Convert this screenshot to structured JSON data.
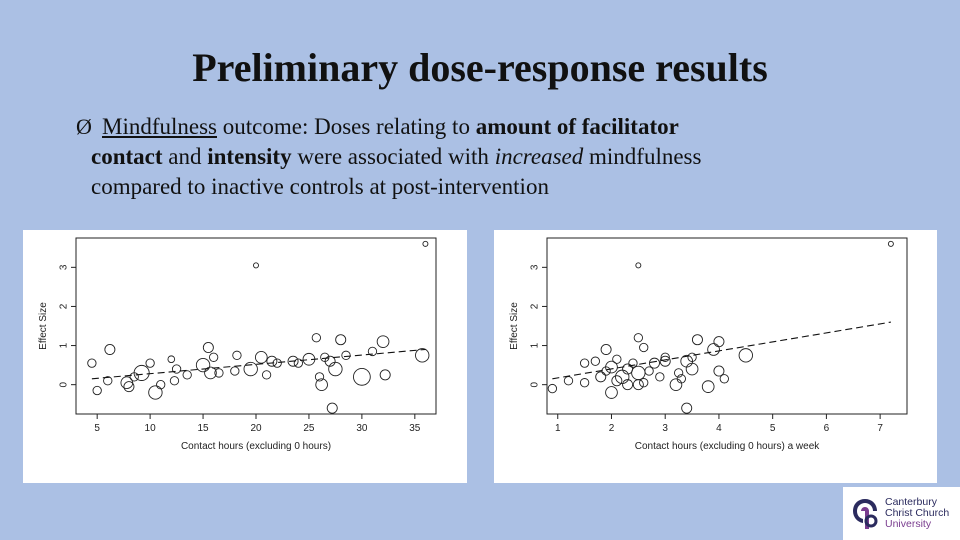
{
  "slide": {
    "title": "Preliminary dose-response results",
    "bullet": {
      "marker": "Ø",
      "t1": "Mindfulness",
      "t2": " outcome: Doses relating to ",
      "t3": "amount of facilitator",
      "t4": "contact",
      "t5": " and ",
      "t6": "intensity",
      "t7": " were associated with ",
      "t8": "increased",
      "t9": " mindfulness",
      "t10": "compared to inactive controls at post-intervention"
    }
  },
  "logo": {
    "line1": "Canterbury",
    "line2": "Christ Church",
    "line3": "University"
  },
  "chart_data": [
    {
      "type": "scatter",
      "xlabel": "Contact hours (excluding 0 hours)",
      "ylabel": "Effect Size",
      "xlim": [
        3.0,
        37.0
      ],
      "ylim": [
        -0.75,
        3.75
      ],
      "x_ticks": [
        5,
        10,
        15,
        20,
        25,
        30,
        35
      ],
      "x_tick_labels": [
        "5",
        "10",
        "15",
        "20",
        "25",
        "30",
        "35"
      ],
      "y_ticks": [
        0,
        1,
        2,
        3
      ],
      "y_tick_labels": [
        "0",
        "1",
        "2",
        "3"
      ],
      "fit_line": {
        "x": [
          4.5,
          36.0
        ],
        "y": [
          0.15,
          0.9
        ],
        "style": "dashed"
      },
      "points": [
        {
          "x": 4.5,
          "y": 0.55,
          "w": 1
        },
        {
          "x": 5.0,
          "y": -0.15,
          "w": 1
        },
        {
          "x": 6.2,
          "y": 0.9,
          "w": 1.2
        },
        {
          "x": 6.0,
          "y": 0.1,
          "w": 1
        },
        {
          "x": 7.8,
          "y": 0.05,
          "w": 1.4
        },
        {
          "x": 8.0,
          "y": -0.05,
          "w": 1.2
        },
        {
          "x": 8.5,
          "y": 0.2,
          "w": 1
        },
        {
          "x": 9.2,
          "y": 0.3,
          "w": 1.8
        },
        {
          "x": 10.0,
          "y": 0.55,
          "w": 1
        },
        {
          "x": 10.5,
          "y": -0.2,
          "w": 1.6
        },
        {
          "x": 11.0,
          "y": 0.0,
          "w": 1
        },
        {
          "x": 12.0,
          "y": 0.65,
          "w": 0.8
        },
        {
          "x": 12.3,
          "y": 0.1,
          "w": 1
        },
        {
          "x": 12.5,
          "y": 0.4,
          "w": 1
        },
        {
          "x": 13.5,
          "y": 0.25,
          "w": 1
        },
        {
          "x": 15.0,
          "y": 0.5,
          "w": 1.6
        },
        {
          "x": 15.5,
          "y": 0.95,
          "w": 1.2
        },
        {
          "x": 15.7,
          "y": 0.3,
          "w": 1.4
        },
        {
          "x": 16.0,
          "y": 0.7,
          "w": 1
        },
        {
          "x": 16.5,
          "y": 0.3,
          "w": 1
        },
        {
          "x": 18.0,
          "y": 0.35,
          "w": 1
        },
        {
          "x": 18.2,
          "y": 0.75,
          "w": 1
        },
        {
          "x": 19.5,
          "y": 0.4,
          "w": 1.6
        },
        {
          "x": 20.0,
          "y": 3.05,
          "w": 0.6
        },
        {
          "x": 20.5,
          "y": 0.7,
          "w": 1.4
        },
        {
          "x": 21.0,
          "y": 0.25,
          "w": 1
        },
        {
          "x": 21.5,
          "y": 0.6,
          "w": 1.2
        },
        {
          "x": 22.0,
          "y": 0.55,
          "w": 1
        },
        {
          "x": 23.5,
          "y": 0.6,
          "w": 1.2
        },
        {
          "x": 24.0,
          "y": 0.55,
          "w": 1
        },
        {
          "x": 25.0,
          "y": 0.65,
          "w": 1.4
        },
        {
          "x": 25.7,
          "y": 1.2,
          "w": 1
        },
        {
          "x": 26.0,
          "y": 0.2,
          "w": 1
        },
        {
          "x": 26.2,
          "y": 0.0,
          "w": 1.4
        },
        {
          "x": 26.5,
          "y": 0.7,
          "w": 1
        },
        {
          "x": 27.0,
          "y": 0.6,
          "w": 1.2
        },
        {
          "x": 27.2,
          "y": -0.6,
          "w": 1.2
        },
        {
          "x": 27.5,
          "y": 0.4,
          "w": 1.6
        },
        {
          "x": 28.0,
          "y": 1.15,
          "w": 1.2
        },
        {
          "x": 28.5,
          "y": 0.75,
          "w": 1
        },
        {
          "x": 30.0,
          "y": 0.2,
          "w": 2.0
        },
        {
          "x": 31.0,
          "y": 0.85,
          "w": 1
        },
        {
          "x": 32.0,
          "y": 1.1,
          "w": 1.4
        },
        {
          "x": 32.2,
          "y": 0.25,
          "w": 1.2
        },
        {
          "x": 36.0,
          "y": 3.6,
          "w": 0.6
        },
        {
          "x": 35.7,
          "y": 0.75,
          "w": 1.6
        }
      ]
    },
    {
      "type": "scatter",
      "xlabel": "Contact hours (excluding 0 hours) a week",
      "ylabel": "Effect Size",
      "xlim": [
        0.8,
        7.5
      ],
      "ylim": [
        -0.75,
        3.75
      ],
      "x_ticks": [
        1,
        2,
        3,
        4,
        5,
        6,
        7
      ],
      "x_tick_labels": [
        "1",
        "2",
        "3",
        "4",
        "5",
        "6",
        "7"
      ],
      "y_ticks": [
        0,
        1,
        2,
        3
      ],
      "y_tick_labels": [
        "0",
        "1",
        "2",
        "3"
      ],
      "fit_line": {
        "x": [
          0.9,
          7.2
        ],
        "y": [
          0.15,
          1.6
        ],
        "style": "dashed"
      },
      "points": [
        {
          "x": 0.9,
          "y": -0.1,
          "w": 1
        },
        {
          "x": 1.2,
          "y": 0.1,
          "w": 1
        },
        {
          "x": 1.5,
          "y": 0.55,
          "w": 1
        },
        {
          "x": 1.5,
          "y": 0.05,
          "w": 1
        },
        {
          "x": 1.7,
          "y": 0.6,
          "w": 1
        },
        {
          "x": 1.8,
          "y": 0.2,
          "w": 1.2
        },
        {
          "x": 1.9,
          "y": 0.9,
          "w": 1.2
        },
        {
          "x": 1.9,
          "y": 0.35,
          "w": 1
        },
        {
          "x": 2.0,
          "y": 0.45,
          "w": 1.4
        },
        {
          "x": 2.0,
          "y": -0.2,
          "w": 1.4
        },
        {
          "x": 2.1,
          "y": 0.1,
          "w": 1.2
        },
        {
          "x": 2.1,
          "y": 0.65,
          "w": 1
        },
        {
          "x": 2.2,
          "y": 0.2,
          "w": 1.6
        },
        {
          "x": 2.3,
          "y": 0.4,
          "w": 1.2
        },
        {
          "x": 2.3,
          "y": 0.0,
          "w": 1.2
        },
        {
          "x": 2.4,
          "y": 0.55,
          "w": 1
        },
        {
          "x": 2.5,
          "y": 0.3,
          "w": 1.6
        },
        {
          "x": 2.5,
          "y": 1.2,
          "w": 1
        },
        {
          "x": 2.5,
          "y": 0.0,
          "w": 1.2
        },
        {
          "x": 2.6,
          "y": 0.05,
          "w": 1
        },
        {
          "x": 2.6,
          "y": 0.95,
          "w": 1
        },
        {
          "x": 2.5,
          "y": 3.05,
          "w": 0.6
        },
        {
          "x": 2.7,
          "y": 0.35,
          "w": 1
        },
        {
          "x": 2.8,
          "y": 0.55,
          "w": 1.2
        },
        {
          "x": 2.9,
          "y": 0.2,
          "w": 1
        },
        {
          "x": 3.0,
          "y": 0.6,
          "w": 1.2
        },
        {
          "x": 3.0,
          "y": 0.7,
          "w": 1
        },
        {
          "x": 3.2,
          "y": 0.0,
          "w": 1.4
        },
        {
          "x": 3.25,
          "y": 0.3,
          "w": 1
        },
        {
          "x": 3.3,
          "y": 0.15,
          "w": 1
        },
        {
          "x": 3.4,
          "y": 0.6,
          "w": 1.4
        },
        {
          "x": 3.4,
          "y": -0.6,
          "w": 1.2
        },
        {
          "x": 3.5,
          "y": 0.4,
          "w": 1.4
        },
        {
          "x": 3.5,
          "y": 0.7,
          "w": 1
        },
        {
          "x": 3.6,
          "y": 1.15,
          "w": 1.2
        },
        {
          "x": 3.8,
          "y": -0.05,
          "w": 1.4
        },
        {
          "x": 3.9,
          "y": 0.9,
          "w": 1.4
        },
        {
          "x": 4.0,
          "y": 0.35,
          "w": 1.2
        },
        {
          "x": 4.0,
          "y": 1.1,
          "w": 1.2
        },
        {
          "x": 4.1,
          "y": 0.15,
          "w": 1
        },
        {
          "x": 4.5,
          "y": 0.75,
          "w": 1.6
        },
        {
          "x": 7.2,
          "y": 3.6,
          "w": 0.6
        }
      ]
    }
  ]
}
